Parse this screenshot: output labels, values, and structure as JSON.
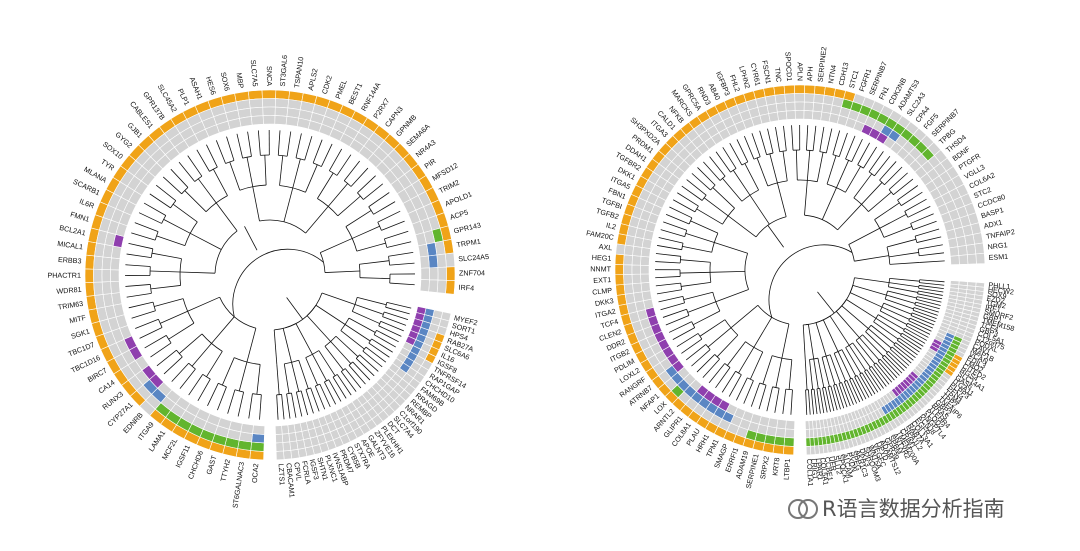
{
  "chart_data": [
    {
      "type": "circular_heatmap_dendrogram",
      "title": "",
      "rings": 4,
      "legend_colors": {
        "absent": "#d3d3d3",
        "orange": "#f0a318",
        "purple": "#8f3fae",
        "blue": "#5a86c3",
        "green": "#62b52e"
      },
      "clusters": [
        {
          "name": "upper",
          "genes": [
            "OCA2",
            "ST6GALNAC3",
            "TTYH2",
            "GAST",
            "CHCHD6",
            "IGSF11",
            "MCF2L",
            "LAMA1",
            "ITGA9",
            "EDNRB",
            "CYP27A1",
            "RUNX3",
            "CA14",
            "BIRC7",
            "TBC1D16",
            "TBC1D7",
            "SGK1",
            "MITF",
            "TRIM63",
            "WDR81",
            "PHACTR1",
            "ERBB3",
            "MICAL1",
            "BCL2A1",
            "FMN1",
            "IL6R",
            "SCARB1",
            "MLANA",
            "TYR",
            "SOX10",
            "GYG2",
            "GJB1",
            "CABLES1",
            "GPR137B",
            "SLC45A2",
            "PLP1",
            "ASAH1",
            "HES6",
            "SOX6",
            "MBP",
            "SLC7A5",
            "SNCA",
            "ST3GAL6",
            "TSPAN10",
            "APLS2",
            "CDK2",
            "PMEL",
            "BEST1",
            "RNF144A",
            "P2RX7",
            "CAPN3",
            "GPNMB",
            "SEMA6A",
            "NR4A3",
            "PIR",
            "MFSD12",
            "TRIM2",
            "APOLD1",
            "ACP5",
            "GPR143",
            "TRPM1",
            "SLC24A5",
            "ZNF704",
            "IRF4"
          ],
          "rings": {
            "orange": [
              [
                0,
                8
              ],
              [
                10,
                10
              ],
              [
                11,
                16
              ],
              [
                16,
                60
              ],
              [
                62,
                64
              ]
            ],
            "green": [
              [
                0,
                8
              ],
              [
                59,
                59
              ]
            ],
            "blue": [
              [
                0,
                0
              ],
              [
                9,
                10
              ],
              [
                60,
                61
              ]
            ],
            "purple": [
              [
                10,
                11
              ],
              [
                13,
                14
              ],
              [
                23,
                23
              ]
            ]
          }
        },
        {
          "name": "lower",
          "genes": [
            "MYEF2",
            "SORT1",
            "HPS4",
            "RAB27A",
            "SLC6A6",
            "IL16",
            "IGSF8",
            "TNFRSF14",
            "RAP1GAP",
            "CHCHD10",
            "FAM69B",
            "RRAGD",
            "REMBP",
            "NRAR1",
            "C1orf190",
            "SLC7A4",
            "DCT",
            "PLEKHH1",
            "ZFYVE16",
            "GALNT3",
            "APOE",
            "STX7RA",
            "CYB5B",
            "PRDM7",
            "IVNS1ABP",
            "PLXNC1",
            "SHTN1",
            "IGSF3",
            "FCRLA",
            "CPVL",
            "CBACAM1",
            "LZTS1"
          ],
          "rings": {
            "blue": [
              [
                0,
                9
              ]
            ],
            "purple": [
              [
                0,
                5
              ]
            ],
            "orange": [
              [
                3,
                6
              ]
            ]
          }
        }
      ],
      "panel_right": {
        "clusters": [
          {
            "name": "upper",
            "genes": [
              "LTBP1",
              "KRT8",
              "SRPX2",
              "SERPINE1",
              "ADAM19",
              "ERRFI1",
              "SMAGP",
              "TPM1",
              "HRH1",
              "PLAU",
              "COL8A1",
              "GLIPR1",
              "ARNTL2",
              "LOX",
              "NFAP1",
              "ATRNB7",
              "RANGRF",
              "LOXL2",
              "PDLIM",
              "ITGB2",
              "DDR2",
              "CLEN2",
              "TCF4",
              "ITGA2",
              "DKK3",
              "CLMP",
              "EXT1",
              "NNMT",
              "HEG1",
              "AXL",
              "FAM20C",
              "IL2",
              "TGFB2",
              "TGFBI",
              "FBN1",
              "ITGA5",
              "DKK1",
              "TGFBR2",
              "DDAH1",
              "PRDM1",
              "SH3PXD2A",
              "ITGA3",
              "CALD1",
              "NFKB",
              "MARCKS",
              "GPRC5A",
              "RND3",
              "AB40",
              "IGFBP3",
              "FHL2",
              "LPHN2",
              "CYR61",
              "FSCN1",
              "TNC",
              "SPOCD1",
              "APLN",
              "APH",
              "SERPINE2",
              "NTN4",
              "CDH13",
              "STC1",
              "FGFR1",
              "SERPINB7",
              "FN1",
              "CDK2NB",
              "ADAMTS3",
              "SLC2A3",
              "CPA4",
              "FGF5",
              "SERPINB7",
              "TPBG",
              "THSD4",
              "BDNF",
              "PTGFR",
              "VGLL3",
              "COL6A2",
              "STC2",
              "CCDC80",
              "BASP1",
              "ADX1",
              "TNFAIP2",
              "NRG1",
              "ESM1"
            ],
            "rings": {
              "orange": [
                [
                  0,
                  28
                ],
                [
                  30,
                  60
                ]
              ],
              "green": [
                [
                  0,
                  4
                ],
                [
                  13,
                  13
                ],
                [
                  60,
                  70
                ]
              ],
              "blue": [
                [
                  7,
                  15
                ],
                [
                  65,
                  66
                ]
              ],
              "purple": [
                [
                  8,
                  11
                ],
                [
                  15,
                  22
                ],
                [
                  63,
                  65
                ]
              ]
            }
          },
          {
            "name": "lower",
            "genes": [
              "PHLL1",
              "HECW2",
              "SOX9",
              "FZD2",
              "TGM2",
              "IRF1",
              "SMURF2",
              "GBP1",
              "TMEM158",
              "TCF4",
              "GBP3",
              "COL5A1",
              "C12orf75",
              "PODXL",
              "CAV1",
              "MAP1B",
              "VCAN",
              "EDIL3",
              "LMO2",
              "CITED2",
              "RGS4",
              "SLC14A1",
              "GAS6",
              "ITGA11",
              "PLPP3",
              "PFN4",
              "TPM4",
              "TPP2",
              "TNFAIP6",
              "GBP2",
              "RRAS",
              "TLEHR4",
              "PLOD2",
              "ANGPTL4",
              "KCNJ8",
              "EGFR",
              "COL13A1",
              "RAB7A",
              "SIPA1L2",
              "CRIM1",
              "TMEM200A",
              "ANTXR2",
              "SPBM",
              "GPR39",
              "ADAMTS12",
              "DPYD",
              "VEGFC",
              "WNT5A",
              "SHROOM3",
              "DKK3",
              "AKR1C3",
              "SPEG",
              "PXDN",
              "ALCAM",
              "SPOCK1",
              "SLIT2",
              "UFR",
              "CCBE1",
              "COL5A1",
              "LPAR1",
              "LRIG1",
              "COL1A1"
            ],
            "rings": {
              "green": [
                [
                  14,
                  61
                ]
              ],
              "blue": [
                [
                  14,
                  40
                ]
              ],
              "purple": [
                [
                  17,
                  19
                ],
                [
                  28,
                  35
                ]
              ],
              "orange": [
                [
                  18,
                  22
                ]
              ]
            }
          }
        ]
      }
    }
  ],
  "watermark": {
    "text": "R语言数据分析指南"
  }
}
